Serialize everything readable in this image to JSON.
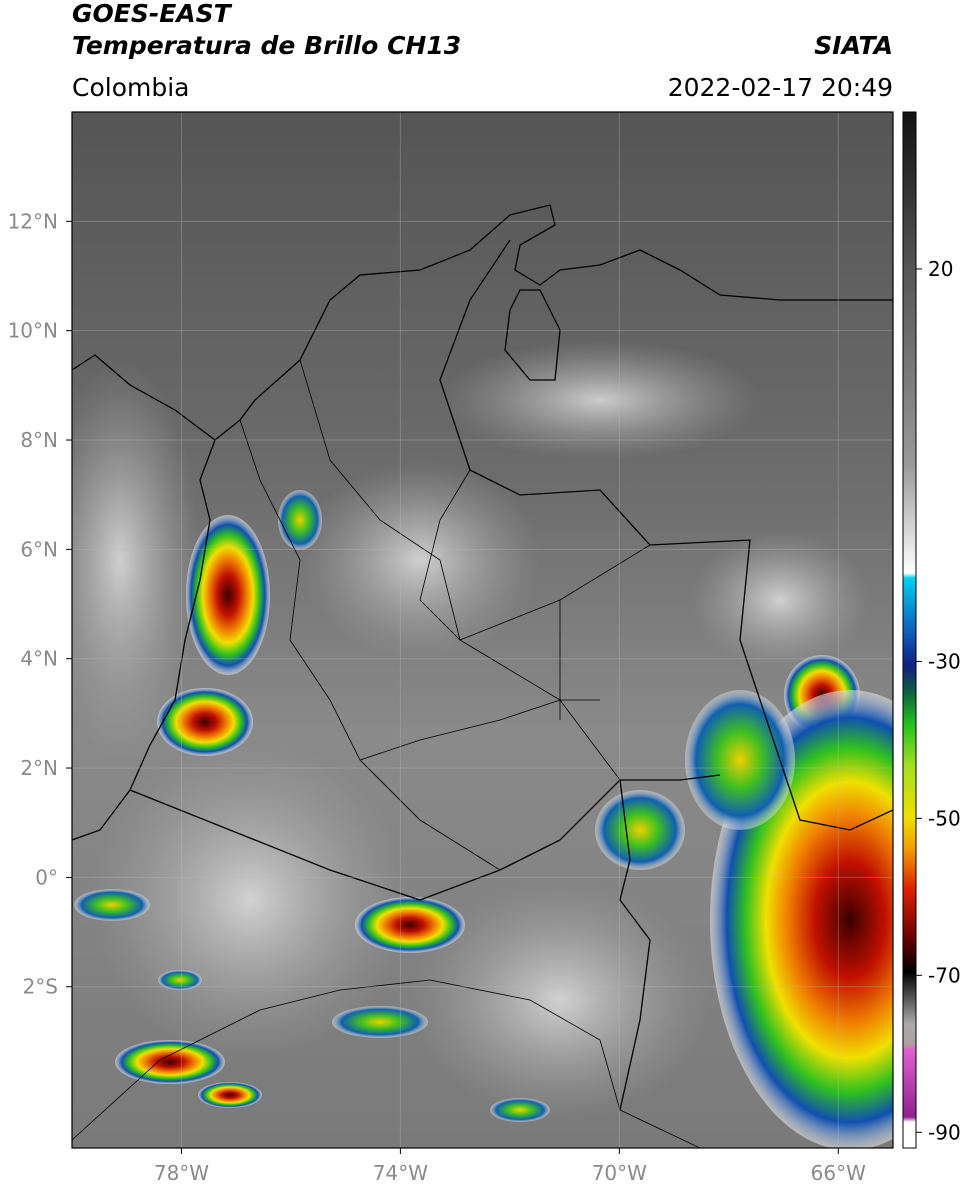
{
  "header": {
    "title": "GOES-EAST",
    "subtitle": "Temperatura de Brillo CH13",
    "source": "SIATA",
    "region": "Colombia",
    "timestamp": "2022-02-17 20:49"
  },
  "map": {
    "lonlim": [
      -80,
      -65
    ],
    "latlim": [
      -4.95,
      14
    ],
    "grid": true,
    "lonticks": [
      {
        "value": -78,
        "label": "78°W"
      },
      {
        "value": -74,
        "label": "74°W"
      },
      {
        "value": -70,
        "label": "70°W"
      },
      {
        "value": -66,
        "label": "66°W"
      }
    ],
    "latticks": [
      {
        "value": 12,
        "label": "12°N"
      },
      {
        "value": 10,
        "label": "10°N"
      },
      {
        "value": 8,
        "label": "8°N"
      },
      {
        "value": 6,
        "label": "6°N"
      },
      {
        "value": 4,
        "label": "4°N"
      },
      {
        "value": 2,
        "label": "2°N"
      },
      {
        "value": 0,
        "label": "0°"
      },
      {
        "value": -2,
        "label": "2°S"
      }
    ]
  },
  "colorbar": {
    "lim": [
      -92,
      40
    ],
    "ticks": [
      20,
      -30,
      -50,
      -70,
      -90
    ]
  }
}
